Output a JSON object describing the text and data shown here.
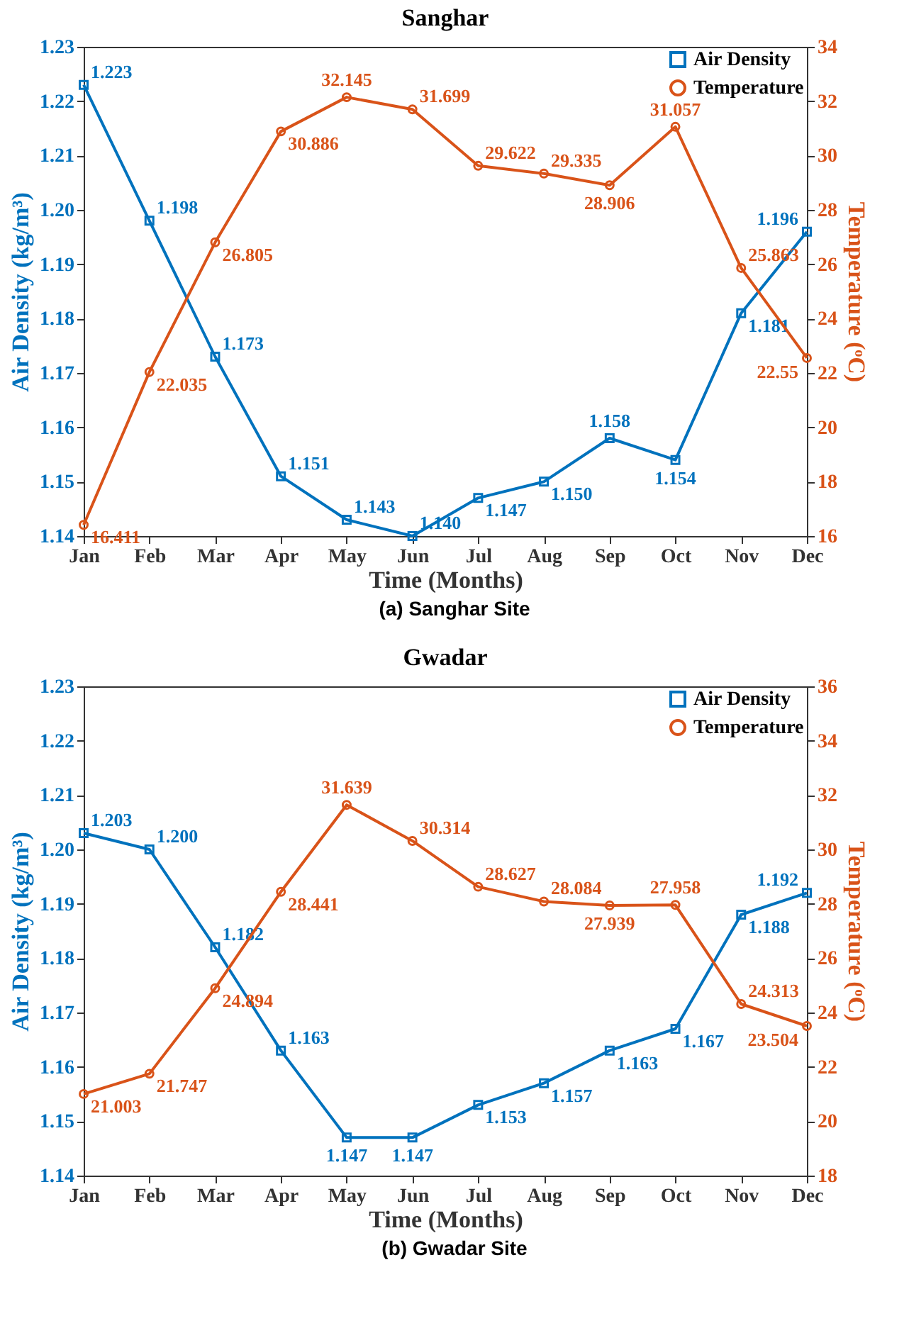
{
  "chart_data": [
    {
      "type": "line",
      "title": "Sanghar",
      "xlabel": "Time (Months)",
      "ylabel": "Air Density (kg/m³)",
      "y2label": "Temperature (ᵒC)",
      "categories": [
        "Jan",
        "Feb",
        "Mar",
        "Apr",
        "May",
        "Jun",
        "Jul",
        "Aug",
        "Sep",
        "Oct",
        "Nov",
        "Dec"
      ],
      "ylim": [
        1.14,
        1.23
      ],
      "yticks": [
        1.14,
        1.15,
        1.16,
        1.17,
        1.18,
        1.19,
        {
          "value": 1.2,
          "label": "1.20"
        },
        1.21,
        1.22,
        1.23
      ],
      "y2lim": [
        16,
        34
      ],
      "y2ticks": [
        16,
        18,
        20,
        22,
        24,
        26,
        28,
        30,
        32,
        34
      ],
      "legend": "top right",
      "grid": false,
      "annotations": [
        "(a) Sanghar Site"
      ],
      "series": [
        {
          "name": "Air Density",
          "color": "#0072bd",
          "marker": "square",
          "values": [
            1.223,
            1.198,
            1.173,
            1.151,
            1.143,
            1.14,
            1.147,
            1.15,
            1.158,
            1.154,
            1.181,
            1.196
          ],
          "value_labels": [
            "1.223",
            "1.198",
            "1.173",
            "1.151",
            "1.143",
            "1.140",
            "1.147",
            "1.150",
            "1.158",
            "1.154",
            "1.181",
            "1.196"
          ]
        },
        {
          "name": "Temperature",
          "color": "#d95319",
          "marker": "circle",
          "axis": "y2",
          "values": [
            16.411,
            22.035,
            26.805,
            30.886,
            32.145,
            31.699,
            29.622,
            29.335,
            28.906,
            31.057,
            25.863,
            22.55
          ],
          "value_labels": [
            "16.411",
            "22.035",
            "26.805",
            "30.886",
            "32.145",
            "31.699",
            "29.622",
            "29.335",
            "28.906",
            "31.057",
            "25.863",
            "22.55"
          ]
        }
      ]
    },
    {
      "type": "line",
      "title": "Gwadar",
      "xlabel": "Time (Months)",
      "ylabel": "Air Density (kg/m³)",
      "y2label": "Temperature (ᵒC)",
      "categories": [
        "Jan",
        "Feb",
        "Mar",
        "Apr",
        "May",
        "Jun",
        "Jul",
        "Aug",
        "Sep",
        "Oct",
        "Nov",
        "Dec"
      ],
      "ylim": [
        1.14,
        1.23
      ],
      "yticks": [
        1.14,
        1.15,
        1.16,
        1.17,
        1.18,
        1.19,
        {
          "value": 1.2,
          "label": "1.20"
        },
        1.21,
        1.22,
        1.23
      ],
      "y2lim": [
        18,
        36
      ],
      "y2ticks": [
        18,
        20,
        22,
        24,
        26,
        28,
        30,
        32,
        34,
        36
      ],
      "legend": "top right",
      "grid": false,
      "annotations": [
        "(b) Gwadar Site"
      ],
      "series": [
        {
          "name": "Air Density",
          "color": "#0072bd",
          "marker": "square",
          "values": [
            1.203,
            1.2,
            1.182,
            1.163,
            1.147,
            1.147,
            1.153,
            1.157,
            1.163,
            1.167,
            1.188,
            1.192
          ],
          "value_labels": [
            "1.203",
            "1.200",
            "1.182",
            "1.163",
            "1.147",
            "1.147",
            "1.153",
            "1.157",
            "1.163",
            "1.167",
            "1.188",
            "1.192"
          ]
        },
        {
          "name": "Temperature",
          "color": "#d95319",
          "marker": "circle",
          "axis": "y2",
          "values": [
            21.003,
            21.747,
            24.894,
            28.441,
            31.639,
            30.314,
            28.627,
            28.084,
            27.939,
            27.958,
            24.313,
            23.504
          ],
          "value_labels": [
            "21.003",
            "21.747",
            "24.894",
            "28.441",
            "31.639",
            "30.314",
            "28.627",
            "28.084",
            "27.939",
            "27.958",
            "24.313",
            "23.504"
          ]
        }
      ]
    }
  ]
}
